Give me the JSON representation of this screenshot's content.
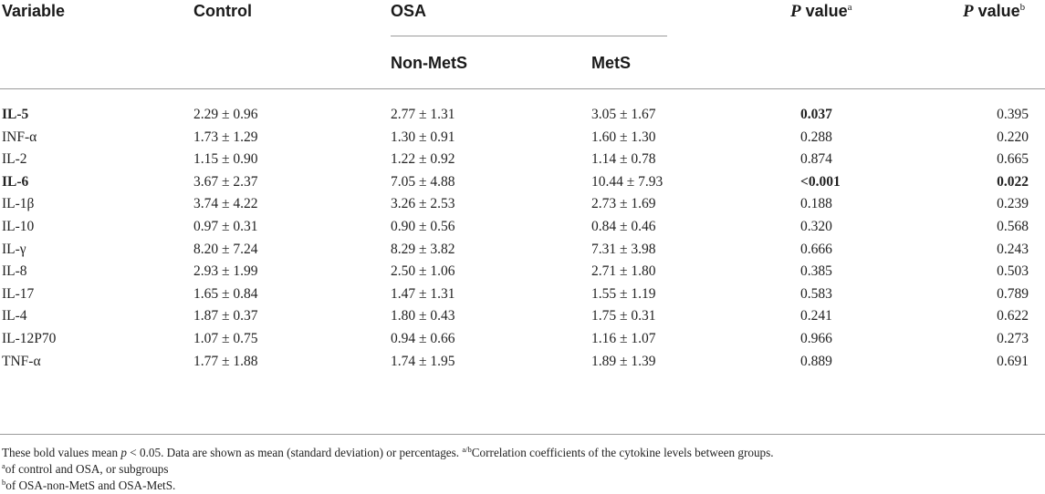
{
  "header": {
    "variable": "Variable",
    "control": "Control",
    "osa": "OSA",
    "non_mets": "Non-MetS",
    "mets": "MetS",
    "p_label": "P",
    "value_word": "value",
    "sup_a": "a",
    "sup_b": "b"
  },
  "rows": [
    {
      "variable": "IL-5",
      "control": "2.29 ± 0.96",
      "non_mets": "2.77 ± 1.31",
      "mets": "3.05 ± 1.67",
      "p_a": "0.037",
      "p_b": "0.395",
      "var_bold": true,
      "pa_bold": true,
      "pb_bold": false
    },
    {
      "variable": "INF-α",
      "control": "1.73 ± 1.29",
      "non_mets": "1.30 ± 0.91",
      "mets": "1.60 ± 1.30",
      "p_a": "0.288",
      "p_b": "0.220",
      "var_bold": false,
      "pa_bold": false,
      "pb_bold": false
    },
    {
      "variable": "IL-2",
      "control": "1.15 ± 0.90",
      "non_mets": "1.22 ± 0.92",
      "mets": "1.14 ± 0.78",
      "p_a": "0.874",
      "p_b": "0.665",
      "var_bold": false,
      "pa_bold": false,
      "pb_bold": false
    },
    {
      "variable": "IL-6",
      "control": "3.67 ± 2.37",
      "non_mets": "7.05 ± 4.88",
      "mets": "10.44 ± 7.93",
      "p_a": "<0.001",
      "p_b": "0.022",
      "var_bold": true,
      "pa_bold": true,
      "pb_bold": true
    },
    {
      "variable": "IL-1β",
      "control": "3.74 ± 4.22",
      "non_mets": "3.26 ± 2.53",
      "mets": "2.73 ± 1.69",
      "p_a": "0.188",
      "p_b": "0.239",
      "var_bold": false,
      "pa_bold": false,
      "pb_bold": false
    },
    {
      "variable": "IL-10",
      "control": "0.97 ± 0.31",
      "non_mets": "0.90 ± 0.56",
      "mets": "0.84 ± 0.46",
      "p_a": "0.320",
      "p_b": "0.568",
      "var_bold": false,
      "pa_bold": false,
      "pb_bold": false
    },
    {
      "variable": "IL-γ",
      "control": "8.20 ± 7.24",
      "non_mets": "8.29 ± 3.82",
      "mets": "7.31 ± 3.98",
      "p_a": "0.666",
      "p_b": "0.243",
      "var_bold": false,
      "pa_bold": false,
      "pb_bold": false
    },
    {
      "variable": "IL-8",
      "control": "2.93 ± 1.99",
      "non_mets": "2.50 ± 1.06",
      "mets": "2.71 ± 1.80",
      "p_a": "0.385",
      "p_b": "0.503",
      "var_bold": false,
      "pa_bold": false,
      "pb_bold": false
    },
    {
      "variable": "IL-17",
      "control": "1.65 ± 0.84",
      "non_mets": "1.47 ± 1.31",
      "mets": "1.55 ± 1.19",
      "p_a": "0.583",
      "p_b": "0.789",
      "var_bold": false,
      "pa_bold": false,
      "pb_bold": false
    },
    {
      "variable": "IL-4",
      "control": "1.87 ± 0.37",
      "non_mets": "1.80 ± 0.43",
      "mets": "1.75 ± 0.31",
      "p_a": "0.241",
      "p_b": "0.622",
      "var_bold": false,
      "pa_bold": false,
      "pb_bold": false
    },
    {
      "variable": "IL-12P70",
      "control": "1.07 ± 0.75",
      "non_mets": "0.94 ± 0.66",
      "mets": "1.16 ± 1.07",
      "p_a": "0.966",
      "p_b": "0.273",
      "var_bold": false,
      "pa_bold": false,
      "pb_bold": false
    },
    {
      "variable": "TNF-α",
      "control": "1.77 ± 1.88",
      "non_mets": "1.74 ± 1.95",
      "mets": "1.89 ± 1.39",
      "p_a": "0.889",
      "p_b": "0.691",
      "var_bold": false,
      "pa_bold": false,
      "pb_bold": false
    }
  ],
  "footnotes": {
    "line1_pre": "These bold values mean ",
    "line1_p": "p",
    "line1_mid": " < 0.05. Data are shown as mean (standard deviation) or percentages. ",
    "line1_sup": "a/b",
    "line1_post": "Correlation coefficients of the cytokine levels between groups.",
    "a_sup": "a",
    "a_text": "of control and OSA, or subgroups",
    "b_sup": "b",
    "b_text": "of OSA-non-MetS and OSA-MetS."
  }
}
